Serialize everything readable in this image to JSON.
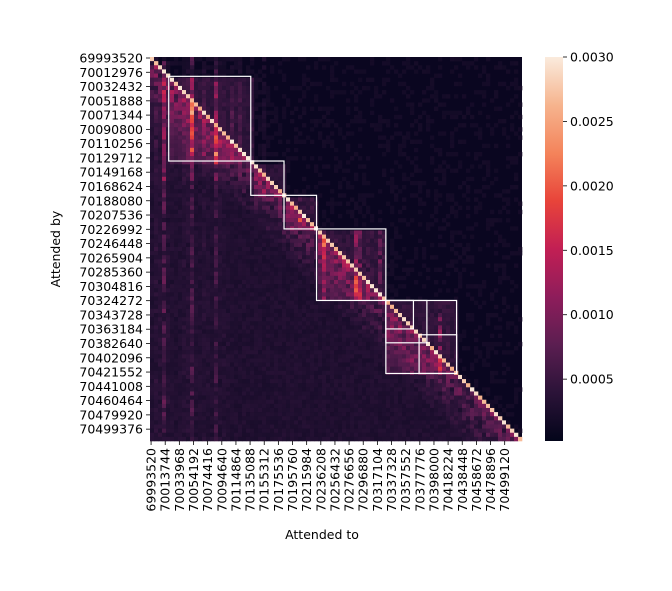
{
  "chart_data": {
    "type": "heatmap",
    "xlabel": "Attended to",
    "ylabel": "Attended by",
    "x_tick_labels": [
      "69993520",
      "70013744",
      "70033968",
      "70054192",
      "70074416",
      "70094640",
      "70114864",
      "70135088",
      "70155312",
      "70175536",
      "70195760",
      "70215984",
      "70236208",
      "70256432",
      "70276656",
      "70296880",
      "70317104",
      "70337328",
      "70357552",
      "70377776",
      "70398000",
      "70418224",
      "70438448",
      "70458672",
      "70478896",
      "70499120"
    ],
    "y_tick_labels": [
      "69993520",
      "70012976",
      "70032432",
      "70051888",
      "70071344",
      "70090800",
      "70110256",
      "70129712",
      "70149168",
      "70168624",
      "70188080",
      "70207536",
      "70226992",
      "70246448",
      "70265904",
      "70285360",
      "70304816",
      "70324272",
      "70343728",
      "70363184",
      "70382640",
      "70402096",
      "70421552",
      "70441008",
      "70460464",
      "70479920",
      "70499376"
    ],
    "value_range": [
      0,
      0.003
    ],
    "colorbar": {
      "ticks": [
        0.0005,
        0.001,
        0.0015,
        0.002,
        0.0025,
        0.003
      ],
      "tick_labels": [
        "0.0005",
        "0.0010",
        "0.0015",
        "0.0020",
        "0.0025",
        "0.0030"
      ],
      "colormap": "rocket",
      "stops": [
        "#03051a",
        "#2b1338",
        "#5b1e51",
        "#8e1d5b",
        "#c21f54",
        "#e8443a",
        "#f4845b",
        "#f6b48e",
        "#faebdd"
      ]
    },
    "highlight_boxes": [
      {
        "from": 70020000,
        "to": 70136000
      },
      {
        "from": 70136000,
        "to": 70183000
      },
      {
        "from": 70183000,
        "to": 70229000
      },
      {
        "from": 70229000,
        "to": 70327000
      },
      {
        "from": 70327000,
        "to": 70427000
      },
      {
        "from": 70374000,
        "to": 70427000
      },
      {
        "from": 70327000,
        "to": 70385000
      },
      {
        "from": 70327000,
        "to": 70366000
      }
    ]
  }
}
